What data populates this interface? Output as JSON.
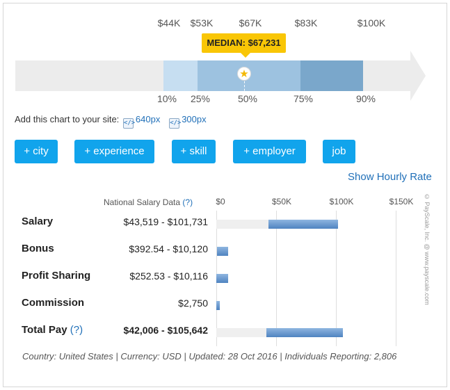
{
  "chart_data": [
    {
      "type": "bar",
      "subtype": "percentile-range",
      "median_label": "MEDIAN: $67,231",
      "median_value": 67231,
      "percentiles": [
        {
          "label": "10%",
          "value_label": "$44K",
          "value": 44000
        },
        {
          "label": "25%",
          "value_label": "$53K",
          "value": 53000
        },
        {
          "label": "50%",
          "value_label": "$67K",
          "value": 67000
        },
        {
          "label": "75%",
          "value_label": "$83K",
          "value": 83000
        },
        {
          "label": "90%",
          "value_label": "$100K",
          "value": 100000
        }
      ],
      "colors": {
        "p10_25": "#c6def1",
        "p25_50": "#9dc2e0",
        "p50_75": "#9dc2e0",
        "p75_90": "#7aa7cb",
        "track": "#ececec",
        "median_tag": "#f9c606"
      }
    },
    {
      "type": "bar",
      "subtype": "horizontal-range",
      "column_header": "National Salary Data",
      "column_header_help": "(?)",
      "x_ticks": [
        "$0",
        "$50K",
        "$100K",
        "$150K"
      ],
      "xlim": [
        0,
        150000
      ],
      "rows": [
        {
          "label": "Salary",
          "help": "",
          "value_text": "$43,519 - $101,731",
          "bold_value": false,
          "low": 43519,
          "high": 101731,
          "bg_low": 0,
          "bg_high": 43519
        },
        {
          "label": "Bonus",
          "help": "",
          "value_text": "$392.54 - $10,120",
          "bold_value": false,
          "low": 392.54,
          "high": 10120
        },
        {
          "label": "Profit Sharing",
          "help": "",
          "value_text": "$252.53 - $10,116",
          "bold_value": false,
          "low": 252.53,
          "high": 10116
        },
        {
          "label": "Commission",
          "help": "",
          "value_text": "$2,750",
          "bold_value": false,
          "low": 0,
          "high": 2750
        },
        {
          "label": "Total Pay",
          "help": "(?)",
          "value_text": "$42,006 - $105,642",
          "bold_value": true,
          "low": 42006,
          "high": 105642,
          "bg_low": 0,
          "bg_high": 42006
        }
      ]
    }
  ],
  "embed": {
    "label": "Add this chart to your site:",
    "link_640": "640px",
    "link_300": "300px"
  },
  "buttons": [
    "+ city",
    "+ experience",
    "+ skill",
    "+ employer",
    "job"
  ],
  "hourly_link": "Show Hourly Rate",
  "footer": "Country: United States | Currency: USD | Updated: 28 Oct 2016 | Individuals Reporting: 2,806",
  "copyright": "© PayScale, Inc. @ www.payscale.com",
  "icons": {
    "star": "star-icon",
    "embed": "embed-code-icon"
  }
}
